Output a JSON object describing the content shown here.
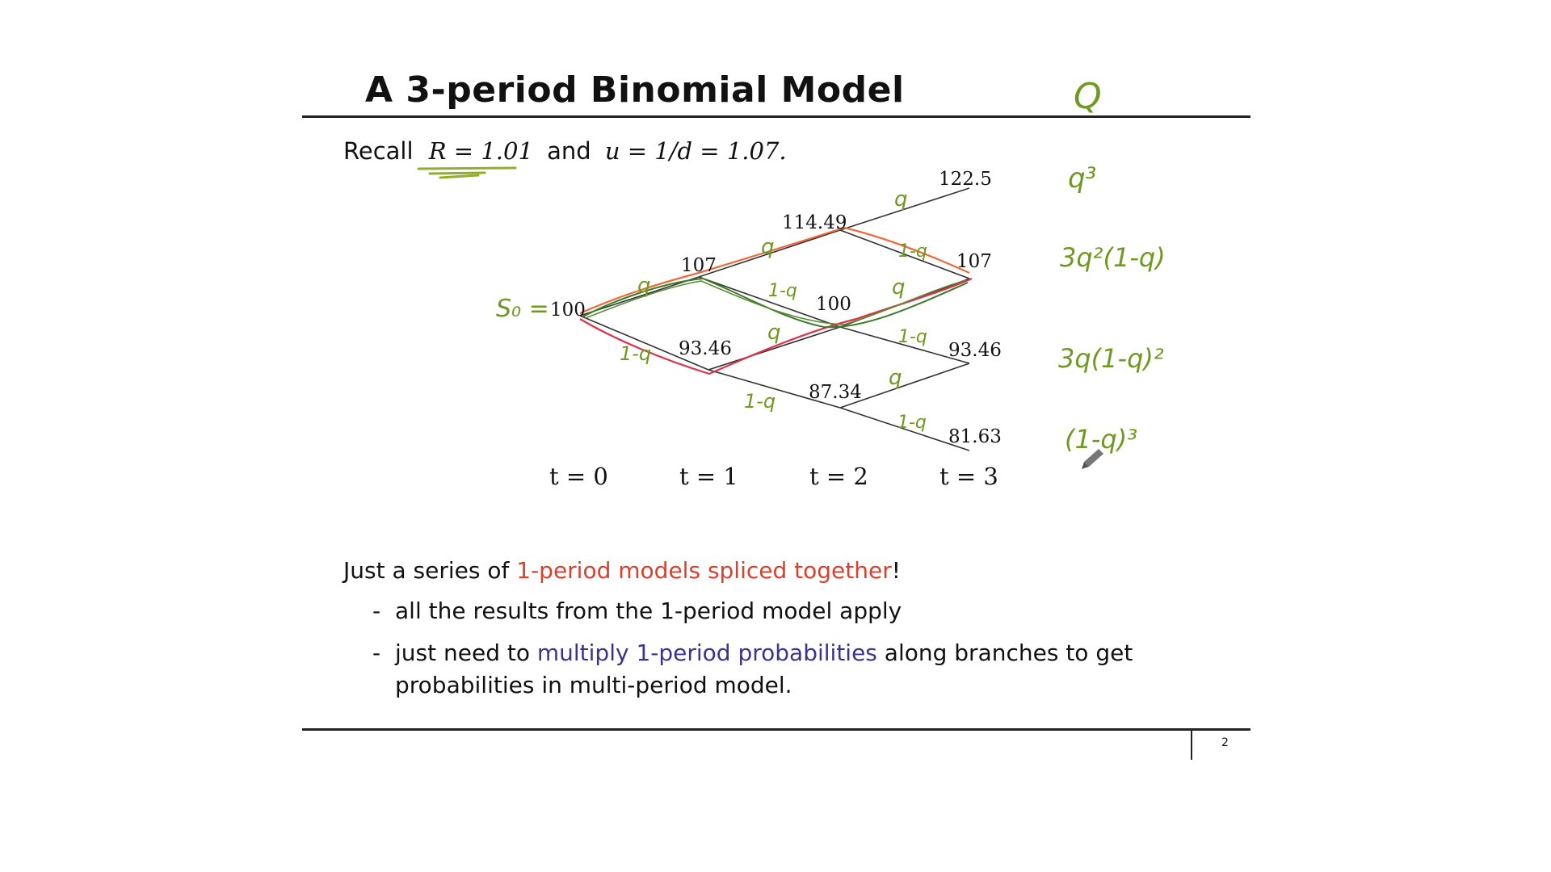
{
  "slide": {
    "title": "A 3-period Binomial Model",
    "page_number": "2",
    "corner_mark": "Q"
  },
  "recall": {
    "prefix": "Recall",
    "r_expr": "R = 1.01",
    "and": "and",
    "u_expr": "u = 1/d = 1.07."
  },
  "tree": {
    "nodes": {
      "t0": "100",
      "t1_up": "107",
      "t1_down": "93.46",
      "t2_up": "114.49",
      "t2_mid": "100",
      "t2_down": "87.34",
      "t3_uuu": "122.5",
      "t3_uud": "107",
      "t3_udd": "93.46",
      "t3_ddd": "81.63"
    },
    "time_labels": [
      "t = 0",
      "t = 1",
      "t = 2",
      "t = 3"
    ],
    "s0_annotation": "S₀ =",
    "branch_labels": {
      "up": "q",
      "down": "1-q"
    },
    "path_colors": {
      "tree": "#333333",
      "annotation": "#6f9a22",
      "red_path": "#e0304a",
      "orange_path": "#ef6a3a",
      "green_path": "#3d7a2a"
    }
  },
  "probabilities": [
    "q³",
    "3q²(1-q)",
    "3q(1-q)²",
    "(1-q)³"
  ],
  "body": {
    "intro_prefix": "Just a series of ",
    "intro_highlight": "1-period models spliced together",
    "intro_suffix": "!",
    "bullet1": "all the results from the 1-period model apply",
    "bullet2_prefix": "just need to ",
    "bullet2_highlight": "multiply 1-period probabilities",
    "bullet2_suffix": " along branches to get",
    "bullet2_line2": "probabilities in multi-period model.",
    "dash": "-"
  }
}
